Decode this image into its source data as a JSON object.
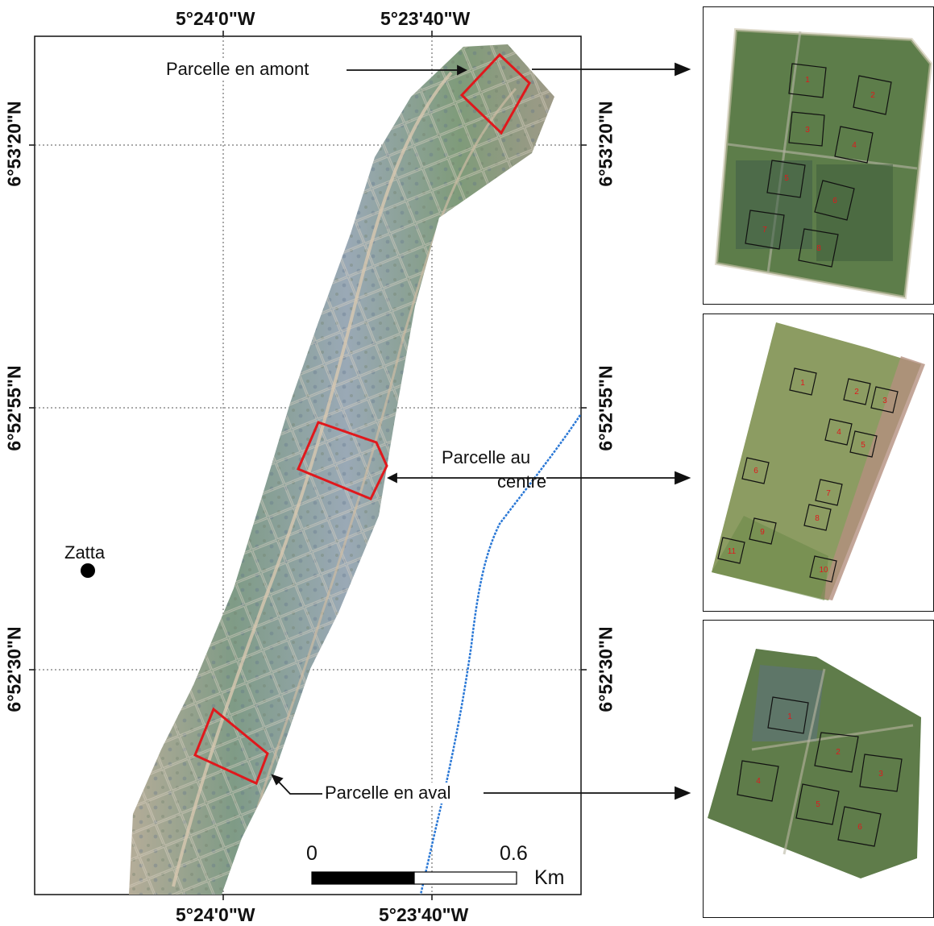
{
  "map": {
    "lon_labels_top": [
      "5°24'0\"W",
      "5°23'40\"W"
    ],
    "lon_labels_bottom": [
      "5°24'0\"W",
      "5°23'40\"W"
    ],
    "lat_labels_left": [
      "6°53'20\"N",
      "6°52'55\"N",
      "6°52'30\"N"
    ],
    "lat_labels_right": [
      "6°53'20\"N",
      "6°52'55\"N",
      "6°52'30\"N"
    ],
    "town": "Zatta",
    "parcels": {
      "upstream": "Parcelle en amont",
      "center_line1": "Parcelle au",
      "center_line2": "centre",
      "downstream": "Parcelle en aval"
    },
    "scalebar": {
      "start": "0",
      "end": "0.6",
      "unit": "Km"
    },
    "colors": {
      "parcel_outline": "#e0181c",
      "river": "#2a78d6",
      "grid": "#555555"
    }
  },
  "insets": [
    {
      "plots": [
        "1",
        "2",
        "3",
        "4",
        "5",
        "6",
        "7",
        "8"
      ]
    },
    {
      "plots": [
        "1",
        "2",
        "3",
        "4",
        "5",
        "6",
        "7",
        "8",
        "9",
        "11",
        "10"
      ]
    },
    {
      "plots": [
        "1",
        "2",
        "3",
        "4",
        "5",
        "6"
      ]
    }
  ]
}
